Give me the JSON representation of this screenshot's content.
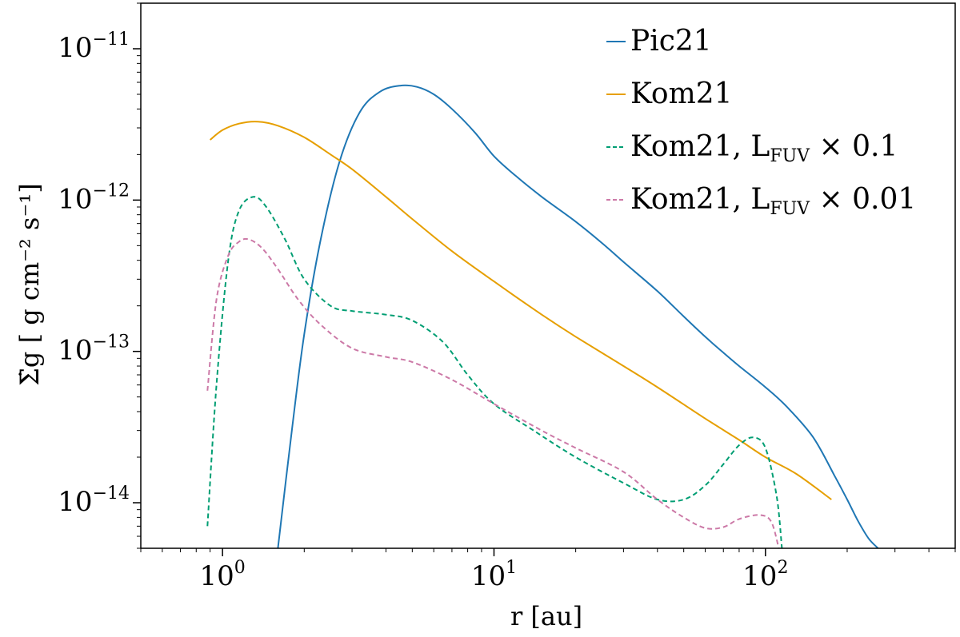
{
  "chart_data": {
    "type": "line",
    "title": "",
    "xlabel": "r [au]",
    "ylabel": "Σ̇g [ g cm⁻² s⁻¹]",
    "x_scale": "log",
    "y_scale": "log",
    "xlim": [
      0.5,
      500
    ],
    "ylim": [
      5e-15,
      2e-11
    ],
    "x_ticks": [
      {
        "value": 1,
        "base": "10",
        "exp": "0"
      },
      {
        "value": 10,
        "base": "10",
        "exp": "1"
      },
      {
        "value": 100,
        "base": "10",
        "exp": "2"
      }
    ],
    "y_ticks": [
      {
        "value": 1e-14,
        "base": "10",
        "exp": "−14"
      },
      {
        "value": 1e-13,
        "base": "10",
        "exp": "−13"
      },
      {
        "value": 1e-12,
        "base": "10",
        "exp": "−12"
      },
      {
        "value": 1e-11,
        "base": "10",
        "exp": "−11"
      }
    ],
    "grid": false,
    "legend_position": "top-right",
    "series": [
      {
        "name": "Pic21",
        "color": "#1f77b4",
        "dash": "solid",
        "x": [
          1.6,
          1.8,
          2.0,
          2.3,
          2.7,
          3.2,
          3.8,
          4.5,
          5.2,
          6.0,
          7.0,
          8.5,
          10,
          12,
          15,
          20,
          25,
          30,
          40,
          50,
          60,
          70,
          80,
          100,
          120,
          150,
          180,
          200,
          220,
          240,
          260
        ],
        "y": [
          5e-15,
          3e-14,
          1.3e-13,
          5.5e-13,
          1.8e-12,
          3.8e-12,
          5.2e-12,
          5.7e-12,
          5.6e-12,
          5e-12,
          4e-12,
          2.8e-12,
          1.95e-12,
          1.45e-12,
          1.05e-12,
          7.2e-13,
          5.2e-13,
          3.9e-13,
          2.5e-13,
          1.7e-13,
          1.25e-13,
          9.8e-14,
          8e-14,
          5.8e-14,
          4.3e-14,
          2.7e-14,
          1.5e-14,
          1.05e-14,
          7.5e-15,
          5.8e-15,
          5e-15
        ]
      },
      {
        "name": "Kom21",
        "color": "#e69f00",
        "dash": "solid",
        "x": [
          0.9,
          1.0,
          1.15,
          1.35,
          1.6,
          2.0,
          2.5,
          3.0,
          4.0,
          5.0,
          7.0,
          10,
          15,
          20,
          30,
          40,
          60,
          80,
          100,
          130,
          175
        ],
        "y": [
          2.5e-12,
          2.9e-12,
          3.2e-12,
          3.3e-12,
          3.1e-12,
          2.6e-12,
          2e-12,
          1.6e-12,
          1.05e-12,
          7.5e-13,
          4.6e-13,
          2.9e-13,
          1.75e-13,
          1.25e-13,
          8e-14,
          5.8e-14,
          3.6e-14,
          2.6e-14,
          2e-14,
          1.55e-14,
          1.05e-14
        ]
      },
      {
        "name": "Kom21, L_FUV × 0.1",
        "color": "#009e73",
        "dash": "dashed",
        "x": [
          0.88,
          0.95,
          1.05,
          1.15,
          1.3,
          1.45,
          1.7,
          2.0,
          2.5,
          3.0,
          4.0,
          5.0,
          6.5,
          8.0,
          10,
          14,
          20,
          30,
          40,
          50,
          60,
          70,
          80,
          90,
          100,
          110,
          115
        ],
        "y": [
          7e-15,
          6e-14,
          4e-13,
          8.5e-13,
          1.05e-12,
          9e-13,
          5.5e-13,
          3e-13,
          2e-13,
          1.85e-13,
          1.75e-13,
          1.6e-13,
          1.15e-13,
          7e-14,
          4.5e-14,
          3e-14,
          2e-14,
          1.35e-14,
          1.05e-14,
          1.05e-14,
          1.3e-14,
          1.8e-14,
          2.4e-14,
          2.7e-14,
          2.3e-14,
          1.1e-14,
          5e-15
        ]
      },
      {
        "name": "Kom21, L_FUV × 0.01",
        "color": "#cc79a7",
        "dash": "dashed",
        "x": [
          0.88,
          0.95,
          1.05,
          1.15,
          1.25,
          1.4,
          1.6,
          1.9,
          2.3,
          3.0,
          4.0,
          5.0,
          7.0,
          10,
          15,
          20,
          30,
          40,
          50,
          60,
          70,
          80,
          95,
          105,
          112
        ],
        "y": [
          5.5e-14,
          2.2e-13,
          4.3e-13,
          5.3e-13,
          5.5e-13,
          4.8e-13,
          3.5e-13,
          2.2e-13,
          1.5e-13,
          1.05e-13,
          9.2e-14,
          8.5e-14,
          6.5e-14,
          4.5e-14,
          3e-14,
          2.3e-14,
          1.6e-14,
          1.05e-14,
          8e-15,
          6.8e-15,
          6.9e-15,
          7.8e-15,
          8.3e-15,
          7.5e-15,
          5e-15
        ]
      }
    ]
  },
  "legend": [
    {
      "label": "Pic21",
      "color": "#1f77b4",
      "dash": "solid",
      "sub": "",
      "suffix": ""
    },
    {
      "label": "Kom21",
      "color": "#e69f00",
      "dash": "solid",
      "sub": "",
      "suffix": ""
    },
    {
      "label": "Kom21,  L",
      "color": "#009e73",
      "dash": "dashed",
      "sub": "FUV",
      "suffix": " × 0.1"
    },
    {
      "label": "Kom21,  L",
      "color": "#cc79a7",
      "dash": "dashed",
      "sub": "FUV",
      "suffix": " × 0.01"
    }
  ]
}
